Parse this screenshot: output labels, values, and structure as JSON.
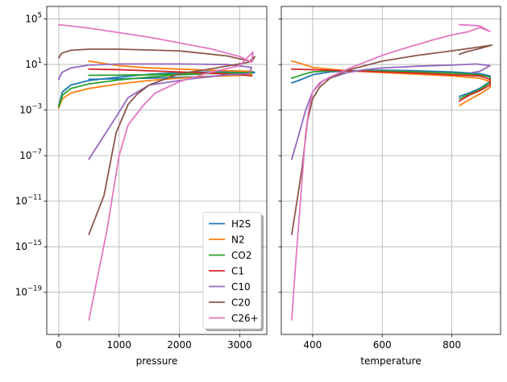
{
  "chart_data": [
    {
      "type": "line",
      "xlabel": "pressure",
      "yscale": "log",
      "xlim": [
        -200,
        3450
      ],
      "ylim_exp": [
        -22.7,
        6.1
      ],
      "x_ticks": [
        0,
        1000,
        2000,
        3000
      ],
      "x_tick_labels": [
        "0",
        "1000",
        "2000",
        "3000"
      ],
      "y_ticks_exp": [
        5,
        1,
        -3,
        -7,
        -11,
        -15,
        -19
      ],
      "y_tick_labels": [
        {
          "base": "10",
          "exp": "5"
        },
        {
          "base": "10",
          "exp": "1"
        },
        {
          "base": "10",
          "exp": "−3"
        },
        {
          "base": "10",
          "exp": "−7"
        },
        {
          "base": "10",
          "exp": "−11"
        },
        {
          "base": "10",
          "exp": "−15"
        },
        {
          "base": "10",
          "exp": "−19"
        }
      ],
      "grid": true,
      "series": [
        {
          "name": "H2S",
          "color": "#1f77b4",
          "points": [
            [
              0,
              -2.6
            ],
            [
              60,
              -1.4
            ],
            [
              200,
              -0.8
            ],
            [
              500,
              -0.4
            ],
            [
              1000,
              -0.1
            ],
            [
              1500,
              0.15
            ],
            [
              2000,
              0.3
            ],
            [
              2500,
              0.35
            ],
            [
              3000,
              0.4
            ],
            [
              3200,
              0.4
            ],
            [
              3250,
              0.3
            ],
            [
              3100,
              0.2
            ],
            [
              2500,
              -0.05
            ],
            [
              1500,
              -0.2
            ],
            [
              500,
              -0.3
            ]
          ]
        },
        {
          "name": "N2",
          "color": "#ff7f0e",
          "points": [
            [
              0,
              -2.8
            ],
            [
              60,
              -2.0
            ],
            [
              200,
              -1.5
            ],
            [
              500,
              -1.1
            ],
            [
              1000,
              -0.7
            ],
            [
              1500,
              -0.4
            ],
            [
              2000,
              -0.2
            ],
            [
              2500,
              -0.05
            ],
            [
              3000,
              0.05
            ],
            [
              3200,
              0.1
            ],
            [
              3200,
              0.4
            ],
            [
              2500,
              0.5
            ],
            [
              1500,
              0.7
            ],
            [
              1000,
              0.9
            ],
            [
              500,
              1.3
            ]
          ]
        },
        {
          "name": "CO2",
          "color": "#2ca02c",
          "points": [
            [
              0,
              -2.7
            ],
            [
              60,
              -1.7
            ],
            [
              200,
              -1.1
            ],
            [
              500,
              -0.7
            ],
            [
              1000,
              -0.35
            ],
            [
              1500,
              -0.1
            ],
            [
              2000,
              0.1
            ],
            [
              2500,
              0.2
            ],
            [
              3000,
              0.25
            ],
            [
              3200,
              0.25
            ],
            [
              3200,
              0.3
            ],
            [
              2500,
              0.25
            ],
            [
              1500,
              0.1
            ],
            [
              500,
              0.05
            ]
          ]
        },
        {
          "name": "C1",
          "color": "#d62728",
          "points": [
            [
              500,
              0.6
            ],
            [
              1000,
              0.55
            ],
            [
              1500,
              0.45
            ],
            [
              2000,
              0.35
            ],
            [
              2500,
              0.25
            ],
            [
              3000,
              0.1
            ],
            [
              3200,
              0.0
            ]
          ]
        },
        {
          "name": "C10",
          "color": "#9467bd",
          "points": [
            [
              0,
              -0.3
            ],
            [
              50,
              0.3
            ],
            [
              200,
              0.7
            ],
            [
              500,
              0.95
            ],
            [
              1000,
              1.05
            ],
            [
              2000,
              1.05
            ],
            [
              2800,
              1.0
            ],
            [
              3200,
              0.75
            ],
            [
              3150,
              0.2
            ],
            [
              2800,
              0.1
            ],
            [
              2200,
              -0.25
            ],
            [
              1500,
              -0.8
            ],
            [
              1150,
              -1.9
            ],
            [
              950,
              -3.6
            ],
            [
              500,
              -7.3
            ]
          ]
        },
        {
          "name": "C20",
          "color": "#8c564b",
          "points": [
            [
              0,
              1.6
            ],
            [
              50,
              2.0
            ],
            [
              200,
              2.25
            ],
            [
              500,
              2.35
            ],
            [
              1000,
              2.35
            ],
            [
              2000,
              2.2
            ],
            [
              2800,
              1.75
            ],
            [
              3200,
              1.25
            ],
            [
              3250,
              1.7
            ],
            [
              3150,
              1.2
            ],
            [
              2500,
              0.6
            ],
            [
              2000,
              0.2
            ],
            [
              1500,
              -0.8
            ],
            [
              1300,
              -1.6
            ],
            [
              1150,
              -2.5
            ],
            [
              950,
              -5.0
            ],
            [
              750,
              -10.5
            ],
            [
              500,
              -13.9
            ]
          ]
        },
        {
          "name": "C26+",
          "color": "#e377c2",
          "points": [
            [
              0,
              4.5
            ],
            [
              500,
              4.2
            ],
            [
              1000,
              3.8
            ],
            [
              1500,
              3.4
            ],
            [
              2000,
              2.9
            ],
            [
              2500,
              2.4
            ],
            [
              3000,
              1.7
            ],
            [
              3200,
              1.2
            ],
            [
              3220,
              2.1
            ],
            [
              3000,
              0.9
            ],
            [
              2500,
              0.3
            ],
            [
              2000,
              -0.5
            ],
            [
              1600,
              -1.5
            ],
            [
              1400,
              -2.6
            ],
            [
              1150,
              -4.3
            ],
            [
              1000,
              -7.0
            ],
            [
              800,
              -13.5
            ],
            [
              500,
              -21.4
            ]
          ]
        }
      ],
      "legend": {
        "location": "lower right",
        "items": [
          {
            "name": "H2S",
            "color": "#1f77b4"
          },
          {
            "name": "N2",
            "color": "#ff7f0e"
          },
          {
            "name": "CO2",
            "color": "#2ca02c"
          },
          {
            "name": "C1",
            "color": "#d62728"
          },
          {
            "name": "C10",
            "color": "#9467bd"
          },
          {
            "name": "C20",
            "color": "#8c564b"
          },
          {
            "name": "C26+",
            "color": "#e377c2"
          }
        ]
      }
    },
    {
      "type": "line",
      "xlabel": "temperature",
      "yscale": "log",
      "sharey": true,
      "xlim": [
        310,
        940
      ],
      "ylim_exp": [
        -22.7,
        6.1
      ],
      "x_ticks": [
        400,
        600,
        800
      ],
      "x_tick_labels": [
        "400",
        "600",
        "800"
      ],
      "grid": true,
      "series": [
        {
          "name": "H2S",
          "color": "#1f77b4",
          "points": [
            [
              340,
              -0.6
            ],
            [
              360,
              -0.4
            ],
            [
              380,
              -0.15
            ],
            [
              400,
              0.1
            ],
            [
              450,
              0.35
            ],
            [
              500,
              0.45
            ],
            [
              600,
              0.5
            ],
            [
              700,
              0.45
            ],
            [
              800,
              0.35
            ],
            [
              880,
              0.2
            ],
            [
              910,
              0.0
            ],
            [
              910,
              -0.5
            ],
            [
              880,
              -1.1
            ],
            [
              850,
              -1.5
            ],
            [
              822,
              -1.8
            ]
          ]
        },
        {
          "name": "N2",
          "color": "#ff7f0e",
          "points": [
            [
              340,
              1.3
            ],
            [
              360,
              1.15
            ],
            [
              380,
              0.95
            ],
            [
              400,
              0.75
            ],
            [
              450,
              0.6
            ],
            [
              500,
              0.45
            ],
            [
              600,
              0.3
            ],
            [
              700,
              0.15
            ],
            [
              800,
              0.0
            ],
            [
              880,
              -0.2
            ],
            [
              910,
              -0.5
            ],
            [
              910,
              -1.0
            ],
            [
              880,
              -1.6
            ],
            [
              850,
              -2.1
            ],
            [
              822,
              -2.6
            ]
          ]
        },
        {
          "name": "CO2",
          "color": "#2ca02c",
          "points": [
            [
              340,
              -0.2
            ],
            [
              360,
              0.0
            ],
            [
              380,
              0.2
            ],
            [
              400,
              0.35
            ],
            [
              450,
              0.45
            ],
            [
              500,
              0.45
            ],
            [
              600,
              0.45
            ],
            [
              700,
              0.35
            ],
            [
              800,
              0.25
            ],
            [
              880,
              0.1
            ],
            [
              910,
              -0.1
            ],
            [
              910,
              -0.6
            ],
            [
              880,
              -1.2
            ],
            [
              850,
              -1.6
            ],
            [
              822,
              -2.0
            ]
          ]
        },
        {
          "name": "C1",
          "color": "#d62728",
          "points": [
            [
              340,
              0.6
            ],
            [
              400,
              0.55
            ],
            [
              500,
              0.45
            ],
            [
              600,
              0.35
            ],
            [
              700,
              0.25
            ],
            [
              800,
              0.1
            ],
            [
              880,
              0.0
            ],
            [
              910,
              -0.3
            ],
            [
              910,
              -0.8
            ],
            [
              880,
              -1.3
            ],
            [
              850,
              -1.7
            ],
            [
              822,
              -2.2
            ]
          ]
        },
        {
          "name": "C10",
          "color": "#9467bd",
          "points": [
            [
              340,
              -7.3
            ],
            [
              360,
              -5.2
            ],
            [
              380,
              -3.0
            ],
            [
              400,
              -1.4
            ],
            [
              430,
              -0.4
            ],
            [
              470,
              0.0
            ],
            [
              500,
              0.3
            ],
            [
              550,
              0.55
            ],
            [
              600,
              0.7
            ],
            [
              700,
              0.85
            ],
            [
              800,
              0.95
            ],
            [
              870,
              1.05
            ],
            [
              910,
              0.9
            ],
            [
              880,
              0.4
            ],
            [
              860,
              0.3
            ]
          ]
        },
        {
          "name": "C20",
          "color": "#8c564b",
          "points": [
            [
              340,
              -13.9
            ],
            [
              355,
              -11.0
            ],
            [
              370,
              -8.0
            ],
            [
              385,
              -4.0
            ],
            [
              400,
              -2.0
            ],
            [
              420,
              -1.0
            ],
            [
              450,
              -0.2
            ],
            [
              500,
              0.5
            ],
            [
              550,
              0.9
            ],
            [
              600,
              1.3
            ],
            [
              700,
              1.8
            ],
            [
              800,
              2.2
            ],
            [
              870,
              2.5
            ],
            [
              915,
              2.7
            ],
            [
              880,
              2.4
            ],
            [
              840,
              2.1
            ],
            [
              822,
              1.9
            ]
          ]
        },
        {
          "name": "C26+",
          "color": "#e377c2",
          "points": [
            [
              340,
              -21.4
            ],
            [
              350,
              -17.0
            ],
            [
              360,
              -13.0
            ],
            [
              370,
              -9.0
            ],
            [
              380,
              -5.0
            ],
            [
              390,
              -2.8
            ],
            [
              400,
              -1.4
            ],
            [
              420,
              -0.6
            ],
            [
              450,
              -0.1
            ],
            [
              500,
              0.6
            ],
            [
              550,
              1.2
            ],
            [
              600,
              1.8
            ],
            [
              650,
              2.3
            ],
            [
              700,
              2.75
            ],
            [
              750,
              3.2
            ],
            [
              800,
              3.6
            ],
            [
              850,
              3.9
            ],
            [
              880,
              4.25
            ],
            [
              910,
              3.9
            ],
            [
              880,
              4.4
            ],
            [
              822,
              4.5
            ]
          ]
        }
      ]
    }
  ]
}
